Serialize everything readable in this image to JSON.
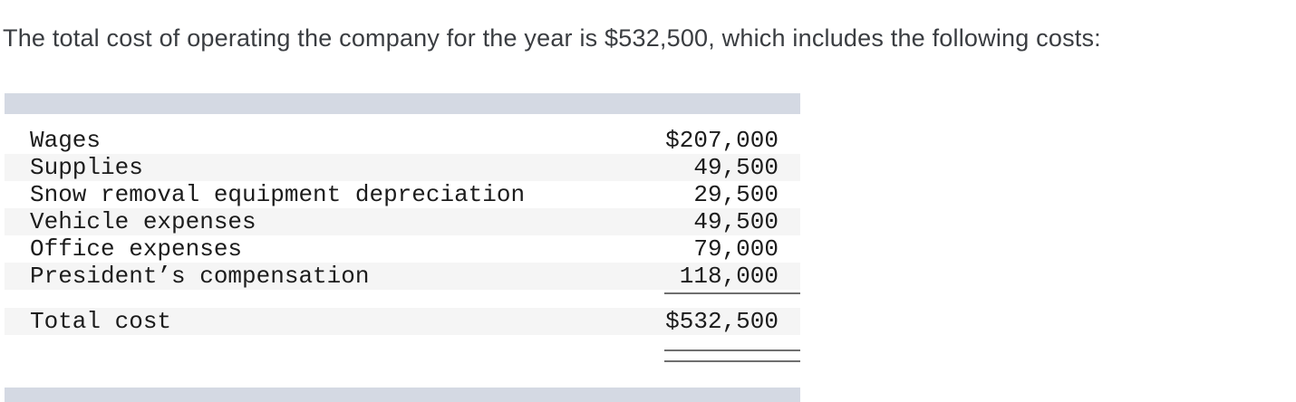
{
  "intro": {
    "text": "The total cost of operating the company for the year is $532,500, which includes the following costs:"
  },
  "table": {
    "rows": [
      {
        "label": "Wages",
        "amount": "$207,000"
      },
      {
        "label": "Supplies",
        "amount": "49,500"
      },
      {
        "label": "Snow removal equipment depreciation",
        "amount": "29,500"
      },
      {
        "label": "Vehicle expenses",
        "amount": "49,500"
      },
      {
        "label": "Office expenses",
        "amount": "79,000"
      },
      {
        "label": "President’s compensation",
        "amount": "118,000"
      }
    ],
    "total": {
      "label": "Total cost",
      "amount": "$532,500"
    }
  },
  "colors": {
    "band": "#d4d9e3",
    "zebra": "#f5f5f5",
    "rule": "#6f6f6f",
    "intro-color": "#3a3d41",
    "mono-color": "#1c1c1c"
  }
}
